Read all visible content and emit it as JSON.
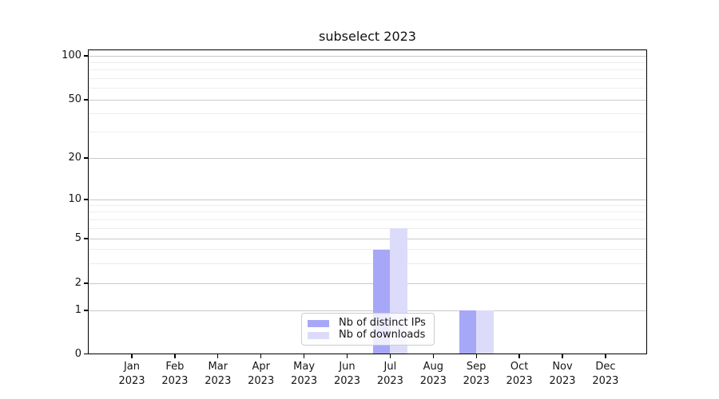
{
  "chart_data": {
    "type": "bar",
    "title": "subselect 2023",
    "year_label": "2023",
    "months": [
      "Jan",
      "Feb",
      "Mar",
      "Apr",
      "May",
      "Jun",
      "Jul",
      "Aug",
      "Sep",
      "Oct",
      "Nov",
      "Dec"
    ],
    "categories": [
      "Jan 2023",
      "Feb 2023",
      "Mar 2023",
      "Apr 2023",
      "May 2023",
      "Jun 2023",
      "Jul 2023",
      "Aug 2023",
      "Sep 2023",
      "Oct 2023",
      "Nov 2023",
      "Dec 2023"
    ],
    "series": [
      {
        "name": "Nb of distinct IPs",
        "color": "#a7a7f8",
        "values": [
          0,
          0,
          0,
          0,
          0,
          0,
          4,
          0,
          1,
          0,
          0,
          0
        ]
      },
      {
        "name": "Nb of downloads",
        "color": "#dcdcfa",
        "values": [
          0,
          0,
          0,
          0,
          0,
          0,
          6,
          0,
          1,
          0,
          0,
          0
        ]
      }
    ],
    "xlabel": "",
    "ylabel": "",
    "y_axis": {
      "scale": "log-like with linear segment below 1",
      "ticks": [
        100,
        50,
        20,
        10,
        5,
        2,
        1,
        0
      ],
      "minor_ticks": [
        90,
        80,
        70,
        60,
        40,
        30,
        9,
        8,
        7,
        6,
        4,
        3
      ],
      "range": [
        0,
        111
      ]
    },
    "grid": true,
    "legend": {
      "location": "lower center",
      "entries": [
        "Nb of distinct IPs",
        "Nb of downloads"
      ]
    }
  },
  "colors": {
    "bar_distinct_ips": "#a7a7f8",
    "bar_downloads": "#dcdcfa",
    "grid_major": "#c9c9c9",
    "grid_minor": "#ededed",
    "axis_line": "#000000",
    "text": "#151515",
    "background": "#ffffff",
    "legend_border": "#cccccc"
  }
}
